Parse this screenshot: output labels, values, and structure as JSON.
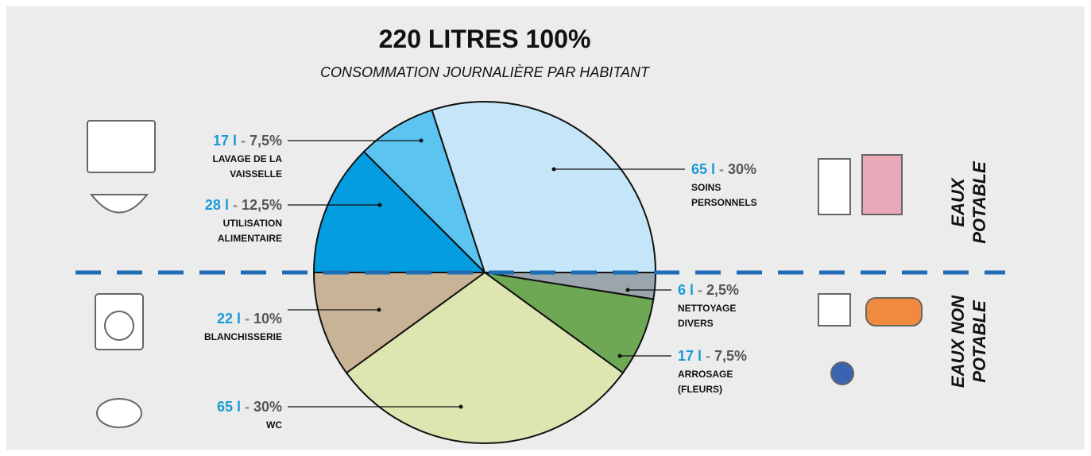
{
  "chart_data": {
    "type": "pie",
    "title": "220 LITRES  100%",
    "subtitle": "CONSOMMATION JOURNALIÈRE PAR HABITANT",
    "categories": [
      "NETTOYAGE DIVERS",
      "ARROSAGE (FLEURS)",
      "WC",
      "BLANCHISSERIE",
      "UTILISATION ALIMENTAIRE",
      "LAVAGE DE LA VAISSELLE",
      "SOINS PERSONNELS"
    ],
    "values": [
      2.5,
      7.5,
      30,
      10,
      12.5,
      7.5,
      30
    ],
    "value_labels": [
      "2,5%",
      "7,5%",
      "30%",
      "10%",
      "12,5%",
      "7,5%",
      "30%"
    ],
    "litres": [
      6,
      17,
      65,
      22,
      28,
      17,
      65
    ],
    "litres_labels": [
      "6 l",
      "17 l",
      "65 l",
      "22 l",
      "28 l",
      "17 l",
      "65 l"
    ],
    "separator": "-",
    "colors": [
      "#9aa5ae",
      "#6ea855",
      "#dde5b0",
      "#c9b396",
      "#049de0",
      "#5bc4f1",
      "#c5e5f8"
    ],
    "groups": [
      [
        "EAUX",
        "POTABLE"
      ],
      [
        "EAUX NON",
        "POTABLE"
      ]
    ]
  }
}
